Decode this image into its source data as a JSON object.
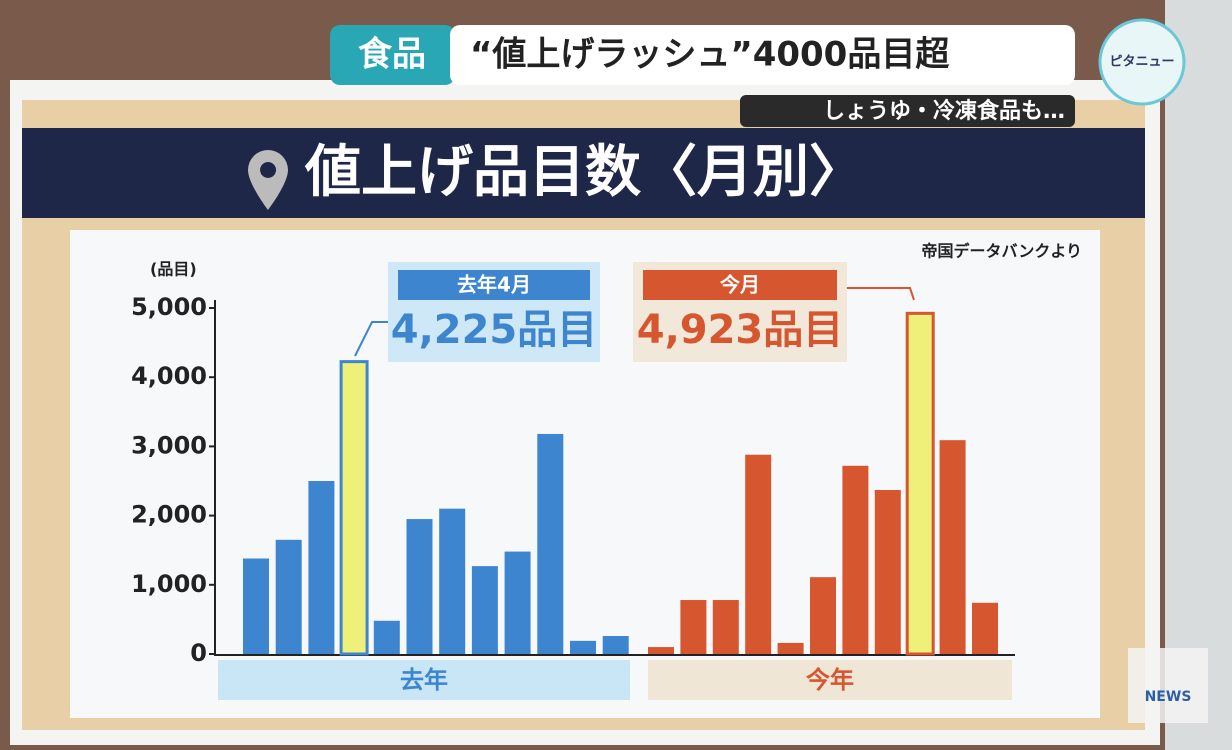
{
  "banner": {
    "tag": "食品",
    "headline": "“値上げラッシュ”4000品目超",
    "subline": "しょうゆ・冷凍食品も…",
    "logo": "ピタニュー",
    "channel": "NEWS"
  },
  "chart_data": {
    "type": "bar",
    "title": "値上げ品目数〈月別〉",
    "source": "帝国データバンクより",
    "y_label": "(品目)",
    "ylim": [
      0,
      5000
    ],
    "yticks": [
      0,
      {
        "value": 1000,
        "label": "1,000"
      },
      {
        "value": 2000,
        "label": "2,000"
      },
      {
        "value": 3000,
        "label": "3,000"
      },
      {
        "value": 4000,
        "label": "4,000"
      },
      {
        "value": 5000,
        "label": "5,000"
      }
    ],
    "series": [
      {
        "name": "去年",
        "color": "#3d86cf",
        "band_color": "#c9e6f7",
        "highlight": 3,
        "highlight_color": "#eef07a",
        "values": [
          1380,
          1650,
          2500,
          4225,
          480,
          1950,
          2100,
          1270,
          1480,
          3180,
          190,
          260
        ],
        "callout": {
          "label": "去年4月",
          "value_label": "4,225品目"
        }
      },
      {
        "name": "今年",
        "color": "#d6562f",
        "band_color": "#efe6d6",
        "highlight": 8,
        "highlight_color": "#eef07a",
        "values": [
          100,
          780,
          780,
          2880,
          160,
          1110,
          2720,
          2370,
          4923,
          3090,
          740
        ],
        "callout": {
          "label": "今月",
          "value_label": "4,923品目"
        }
      }
    ]
  }
}
